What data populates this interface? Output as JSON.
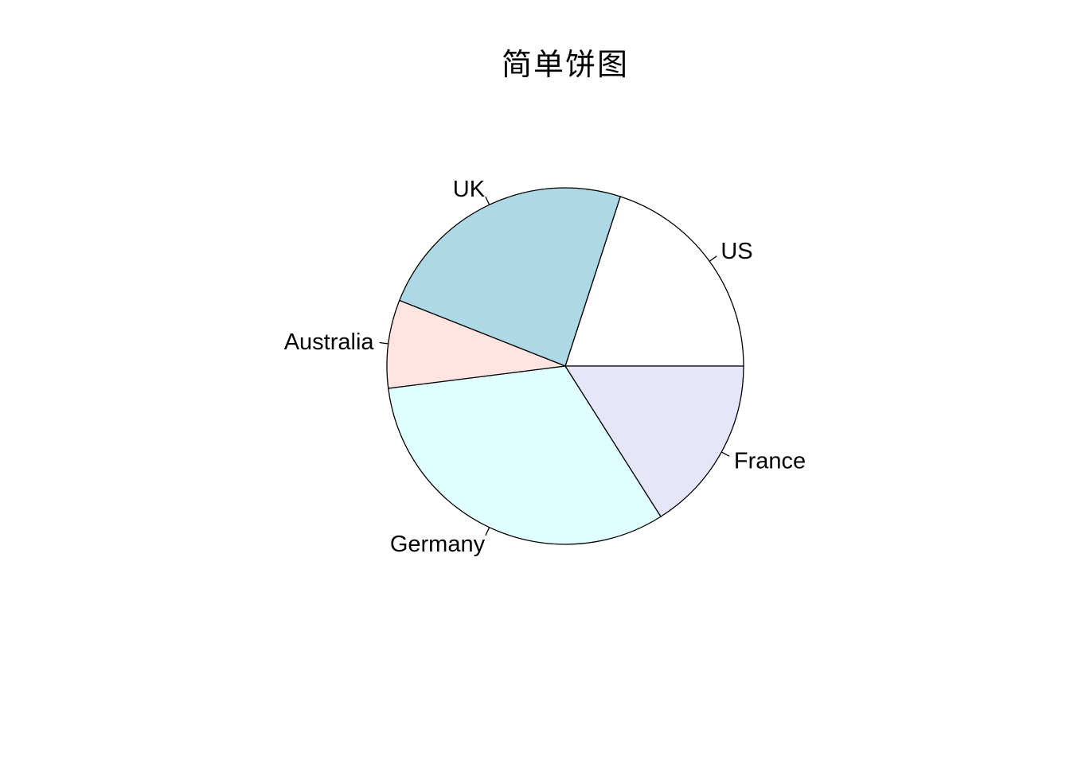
{
  "chart_data": {
    "type": "pie",
    "title": "简单饼图",
    "categories": [
      "US",
      "UK",
      "Australia",
      "Germany",
      "France"
    ],
    "values": [
      20,
      24,
      8,
      32,
      16
    ],
    "colors": [
      "#ffffff",
      "#add8e6",
      "#ffe4e1",
      "#e0ffff",
      "#e6e6fa"
    ],
    "start_angle_deg": 0,
    "direction": "counterclockwise",
    "border_color": "#000000",
    "legend": "none"
  }
}
